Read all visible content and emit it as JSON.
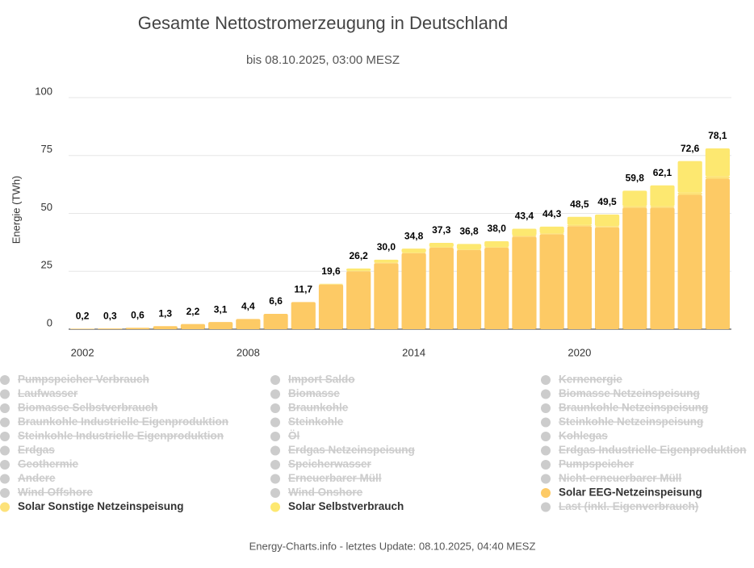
{
  "chart_data": {
    "type": "bar",
    "title": "Gesamte Nettostromerzeugung in Deutschland",
    "subtitle": "bis 08.10.2025, 03:00 MESZ",
    "y_label": "Energie (TWh)",
    "footer": "Energy-Charts.info - letztes Update: 08.10.2025, 04:40 MESZ",
    "stacked": true,
    "categories": [
      "2002",
      null,
      null,
      null,
      null,
      null,
      "2008",
      null,
      null,
      null,
      null,
      null,
      "2014",
      null,
      null,
      null,
      null,
      null,
      "2020",
      null,
      null,
      null,
      null,
      null
    ],
    "ylim": [
      0,
      100
    ],
    "yticks": [
      0,
      25,
      50,
      75,
      100
    ],
    "grid": true,
    "totals": {
      "values": [
        0.2,
        0.3,
        0.6,
        1.3,
        2.2,
        3.1,
        4.4,
        6.6,
        11.7,
        19.6,
        26.2,
        30.0,
        34.8,
        37.3,
        36.8,
        38.0,
        43.4,
        44.3,
        48.5,
        49.5,
        59.8,
        62.1,
        72.6,
        78.1
      ],
      "value_labels": [
        "0,2",
        "0,3",
        "0,6",
        "1,3",
        "2,2",
        "3,1",
        "4,4",
        "6,6",
        "11,7",
        "19,6",
        "26,2",
        "30,0",
        "34,8",
        "37,3",
        "36,8",
        "38,0",
        "43,4",
        "44,3",
        "48,5",
        "49,5",
        "59,8",
        "62,1",
        "72,6",
        "78,1"
      ]
    },
    "series": [
      {
        "name": "Pumpspeicher Verbrauch",
        "visible": false
      },
      {
        "name": "Import Saldo",
        "visible": false
      },
      {
        "name": "Kernenergie",
        "visible": false
      },
      {
        "name": "Laufwasser",
        "visible": false
      },
      {
        "name": "Biomasse",
        "visible": false
      },
      {
        "name": "Biomasse Netzeinspeisung",
        "visible": false
      },
      {
        "name": "Biomasse Selbstverbrauch",
        "visible": false
      },
      {
        "name": "Braunkohle",
        "visible": false
      },
      {
        "name": "Braunkohle Netzeinspeisung",
        "visible": false
      },
      {
        "name": "Braunkohle Industrielle Eigenproduktion",
        "visible": false
      },
      {
        "name": "Steinkohle",
        "visible": false
      },
      {
        "name": "Steinkohle Netzeinspeisung",
        "visible": false
      },
      {
        "name": "Steinkohle Industrielle Eigenproduktion",
        "visible": false
      },
      {
        "name": "Öl",
        "visible": false
      },
      {
        "name": "Kohlegas",
        "visible": false
      },
      {
        "name": "Erdgas",
        "visible": false
      },
      {
        "name": "Erdgas Netzeinspeisung",
        "visible": false
      },
      {
        "name": "Erdgas Industrielle Eigenproduktion",
        "visible": false
      },
      {
        "name": "Geothermie",
        "visible": false
      },
      {
        "name": "Speicherwasser",
        "visible": false
      },
      {
        "name": "Pumpspeicher",
        "visible": false
      },
      {
        "name": "Andere",
        "visible": false
      },
      {
        "name": "Erneuerbarer Müll",
        "visible": false
      },
      {
        "name": "Nicht-erneuerbarer Müll",
        "visible": false
      },
      {
        "name": "Wind Offshore",
        "visible": false
      },
      {
        "name": "Wind Onshore",
        "visible": false
      },
      {
        "name": "Solar EEG-Netzeinspeisung",
        "visible": true,
        "color": "#fdca65",
        "values": [
          0.2,
          0.3,
          0.6,
          1.3,
          2.2,
          3.1,
          4.4,
          6.6,
          11.7,
          19.3,
          25.0,
          28.5,
          32.8,
          35.2,
          34.2,
          35.2,
          40.0,
          41.0,
          44.5,
          44.0,
          52.5,
          52.5,
          58.0,
          65.0
        ]
      },
      {
        "name": "Solar Sonstige Netzeinspeisung",
        "visible": true,
        "color": "#fde27a",
        "values": [
          0,
          0,
          0,
          0,
          0,
          0,
          0,
          0,
          0,
          0.1,
          0.2,
          0.3,
          0.3,
          0.3,
          0.3,
          0.3,
          0.4,
          0.4,
          0.5,
          0.5,
          0.6,
          0.6,
          1.0,
          1.0
        ]
      },
      {
        "name": "Solar Selbstverbrauch",
        "visible": true,
        "color": "#fde870",
        "values": [
          0,
          0,
          0,
          0,
          0,
          0,
          0,
          0,
          0,
          0.2,
          1.0,
          1.2,
          1.7,
          1.8,
          2.3,
          2.5,
          3.0,
          2.9,
          3.5,
          5.0,
          6.7,
          9.0,
          13.6,
          12.1
        ]
      },
      {
        "name": "Last (inkl. Eigenverbrauch)",
        "visible": false
      }
    ]
  }
}
